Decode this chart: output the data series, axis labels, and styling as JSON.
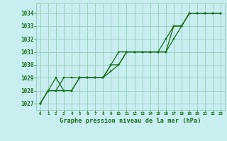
{
  "background_color": "#c8eef0",
  "grid_color": "#99ccbb",
  "line_color": "#1a6b1a",
  "marker_color": "#1a6b1a",
  "title": "Graphe pression niveau de la mer (hPa)",
  "title_color": "#1a6b1a",
  "ylim": [
    1026.5,
    1034.8
  ],
  "xlim": [
    -0.5,
    23.5
  ],
  "yticks": [
    1027,
    1028,
    1029,
    1030,
    1031,
    1032,
    1033,
    1034
  ],
  "xticks": [
    0,
    1,
    2,
    3,
    4,
    5,
    6,
    7,
    8,
    9,
    10,
    11,
    12,
    13,
    14,
    15,
    16,
    17,
    18,
    19,
    20,
    21,
    22,
    23
  ],
  "series": [
    [
      1027.0,
      1028.0,
      1028.0,
      1028.0,
      1028.0,
      1029.0,
      1029.0,
      1029.0,
      1029.0,
      1030.0,
      1031.0,
      1031.0,
      1031.0,
      1031.0,
      1031.0,
      1031.0,
      1032.0,
      1033.0,
      1033.0,
      1034.0,
      1034.0,
      1034.0,
      1034.0,
      1034.0
    ],
    [
      1027.0,
      1028.0,
      1029.0,
      1028.0,
      1028.0,
      1029.0,
      1029.0,
      1029.0,
      1029.0,
      1029.5,
      1030.0,
      1031.0,
      1031.0,
      1031.0,
      1031.0,
      1031.0,
      1031.0,
      1032.0,
      1033.0,
      1034.0,
      1034.0,
      1034.0,
      1034.0,
      1034.0
    ],
    [
      1027.0,
      1028.0,
      1028.0,
      1029.0,
      1029.0,
      1029.0,
      1029.0,
      1029.0,
      1029.0,
      1030.0,
      1030.0,
      1031.0,
      1031.0,
      1031.0,
      1031.0,
      1031.0,
      1031.0,
      1033.0,
      1033.0,
      1034.0,
      1034.0,
      1034.0,
      1034.0,
      1034.0
    ]
  ]
}
